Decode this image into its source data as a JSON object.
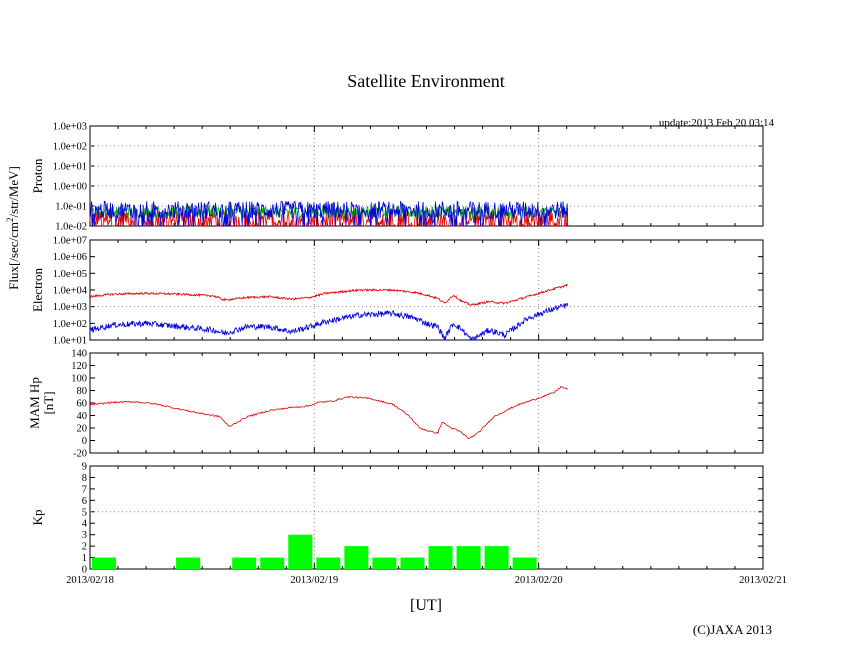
{
  "chart_data": {
    "type": "line",
    "title": "Satellite Environment",
    "update_label": "update:2013 Feb 20 03:14",
    "xlabel": "[UT]",
    "copyright": "(C)JAXA 2013",
    "x_ticks": [
      "2013/02/18",
      "2013/02/19",
      "2013/02/20",
      "2013/02/21"
    ],
    "x_range_days": [
      0,
      3
    ],
    "data_end_day": 2.13,
    "flux_label": "Flux[/sec/cm2/str/MeV]",
    "flux_label_parts": {
      "pre": "Flux[/sec/cm",
      "sup": "2",
      "post": "/str/MeV]"
    },
    "panels": {
      "proton": {
        "ylabel": "Proton",
        "yscale": "log",
        "ylim_log10": [
          -2,
          3
        ],
        "y_ticks": [
          "1.0e-02",
          "1.0e-01",
          "1.0e+00",
          "1.0e+01",
          "1.0e+02",
          "1.0e+03"
        ],
        "series": [
          {
            "name": "proton-red",
            "color": "#e00000",
            "level_log10": -1.6
          },
          {
            "name": "proton-green",
            "color": "#00b000",
            "level_log10": -1.3
          },
          {
            "name": "proton-blue",
            "color": "#0000e0",
            "level_log10": -1.2
          }
        ]
      },
      "electron": {
        "ylabel": "Electron",
        "yscale": "log",
        "ylim_log10": [
          1,
          7
        ],
        "y_ticks": [
          "1.0e+01",
          "1.0e+02",
          "1.0e+03",
          "1.0e+04",
          "1.0e+05",
          "1.0e+06",
          "1.0e+07"
        ],
        "series": [
          {
            "name": "electron-red",
            "color": "#e00000",
            "x": [
              0,
              0.1,
              0.25,
              0.4,
              0.55,
              0.6,
              0.7,
              0.8,
              0.9,
              0.98,
              1.05,
              1.2,
              1.35,
              1.45,
              1.5,
              1.55,
              1.58,
              1.62,
              1.66,
              1.7,
              1.78,
              1.85,
              1.95,
              2.05,
              2.13
            ],
            "log10": [
              3.6,
              3.75,
              3.8,
              3.75,
              3.65,
              3.4,
              3.55,
              3.6,
              3.45,
              3.55,
              3.8,
              4.0,
              4.0,
              3.85,
              3.7,
              3.5,
              3.2,
              3.7,
              3.3,
              3.1,
              3.3,
              3.2,
              3.6,
              4.0,
              4.3
            ]
          },
          {
            "name": "electron-blue",
            "color": "#0000e0",
            "x": [
              0,
              0.1,
              0.25,
              0.4,
              0.55,
              0.6,
              0.7,
              0.8,
              0.9,
              0.98,
              1.05,
              1.2,
              1.35,
              1.45,
              1.5,
              1.55,
              1.58,
              1.62,
              1.66,
              1.7,
              1.78,
              1.85,
              1.95,
              2.05,
              2.13
            ],
            "log10": [
              1.6,
              1.9,
              2.0,
              1.8,
              1.6,
              1.4,
              1.8,
              1.8,
              1.5,
              1.8,
              2.1,
              2.5,
              2.6,
              2.3,
              2.0,
              1.8,
              1.1,
              2.0,
              1.6,
              1.0,
              1.6,
              1.3,
              2.3,
              2.8,
              3.1
            ]
          }
        ]
      },
      "hp": {
        "ylabel": "MAM Hp",
        "ylabel2": "[nT]",
        "ylim": [
          -20,
          140
        ],
        "y_ticks": [
          "-20",
          "0",
          "20",
          "40",
          "60",
          "80",
          "100",
          "120",
          "140"
        ],
        "series": [
          {
            "name": "hp-red",
            "color": "#e00000",
            "x": [
              0,
              0.1,
              0.2,
              0.3,
              0.4,
              0.5,
              0.58,
              0.62,
              0.7,
              0.8,
              0.9,
              0.97,
              1.02,
              1.08,
              1.15,
              1.25,
              1.35,
              1.42,
              1.47,
              1.52,
              1.55,
              1.57,
              1.6,
              1.65,
              1.69,
              1.73,
              1.8,
              1.9,
              2.0,
              2.07,
              2.1,
              2.13
            ],
            "values": [
              57,
              61,
              62,
              58,
              50,
              43,
              38,
              22,
              38,
              48,
              53,
              55,
              61,
              63,
              70,
              67,
              58,
              40,
              20,
              14,
              12,
              30,
              22,
              14,
              3,
              12,
              38,
              56,
              68,
              77,
              86,
              82
            ]
          }
        ]
      },
      "kp": {
        "type": "bar",
        "ylabel": "Kp",
        "ylim": [
          0,
          9
        ],
        "y_ticks": [
          "0",
          "1",
          "2",
          "3",
          "4",
          "5",
          "6",
          "7",
          "8",
          "9"
        ],
        "bar_color": "#00ff00",
        "bars_3h": [
          1,
          0,
          0,
          1,
          0,
          1,
          1,
          3,
          1,
          2,
          1,
          1,
          2,
          2,
          2,
          1
        ]
      }
    }
  }
}
